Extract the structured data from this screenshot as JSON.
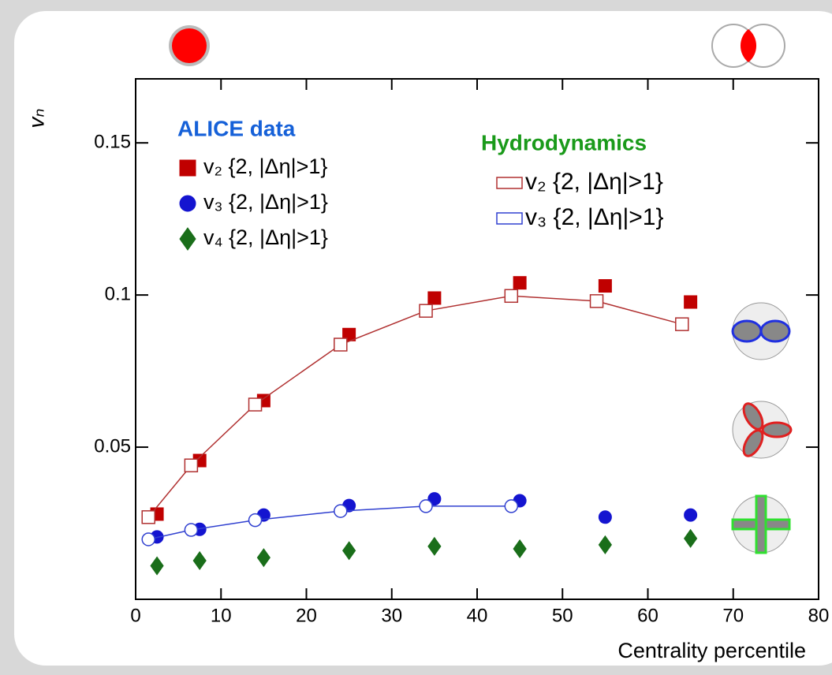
{
  "chart_data": {
    "type": "scatter",
    "xlabel": "Centrality percentile",
    "ylabel": "vₙ",
    "xlim": [
      0,
      80
    ],
    "xticks": [
      0,
      10,
      20,
      30,
      40,
      50,
      60,
      70,
      80
    ],
    "ylim": [
      0,
      0.17
    ],
    "yticks": [
      0.05,
      0.1,
      0.15
    ],
    "legend_titles": [
      "ALICE data",
      "Hydrodynamics"
    ],
    "series": [
      {
        "name": "v₂ {2, |Δη|>1}",
        "group": 0,
        "marker": "square",
        "filled": true,
        "color": "#c00000",
        "x": [
          2.5,
          7.5,
          15,
          25,
          35,
          45,
          55,
          65
        ],
        "values": [
          0.028,
          0.0456,
          0.0653,
          0.087,
          0.099,
          0.104,
          0.103,
          0.0977
        ]
      },
      {
        "name": "v₃ {2, |Δη|>1}",
        "group": 0,
        "marker": "circle",
        "filled": true,
        "color": "#1414d0",
        "x": [
          2.5,
          7.5,
          15,
          25,
          35,
          45,
          55,
          65
        ],
        "values": [
          0.0205,
          0.023,
          0.0277,
          0.0308,
          0.033,
          0.0324,
          0.027,
          0.0277
        ]
      },
      {
        "name": "v₄ {2, |Δη|>1}",
        "group": 0,
        "marker": "diamond",
        "filled": true,
        "color": "#1a6e1a",
        "x": [
          2.5,
          7.5,
          15,
          25,
          35,
          45,
          55,
          65
        ],
        "values": [
          0.011,
          0.0127,
          0.0137,
          0.016,
          0.0174,
          0.0166,
          0.0179,
          0.02
        ]
      },
      {
        "name": "v₂ {2, |Δη|>1}",
        "group": 1,
        "marker": "square",
        "filled": false,
        "line": true,
        "color": "#b03030",
        "x": [
          1.5,
          6.5,
          14,
          24,
          34,
          44,
          54,
          64
        ],
        "values": [
          0.027,
          0.044,
          0.064,
          0.0837,
          0.0948,
          0.0997,
          0.098,
          0.0904
        ]
      },
      {
        "name": "v₃ {2, |Δη|>1}",
        "group": 1,
        "marker": "circle",
        "filled": false,
        "line": true,
        "color": "#3040d0",
        "x": [
          1.5,
          6.5,
          14,
          24,
          34,
          44
        ],
        "values": [
          0.0197,
          0.0228,
          0.026,
          0.029,
          0.0306,
          0.0306
        ]
      }
    ]
  }
}
